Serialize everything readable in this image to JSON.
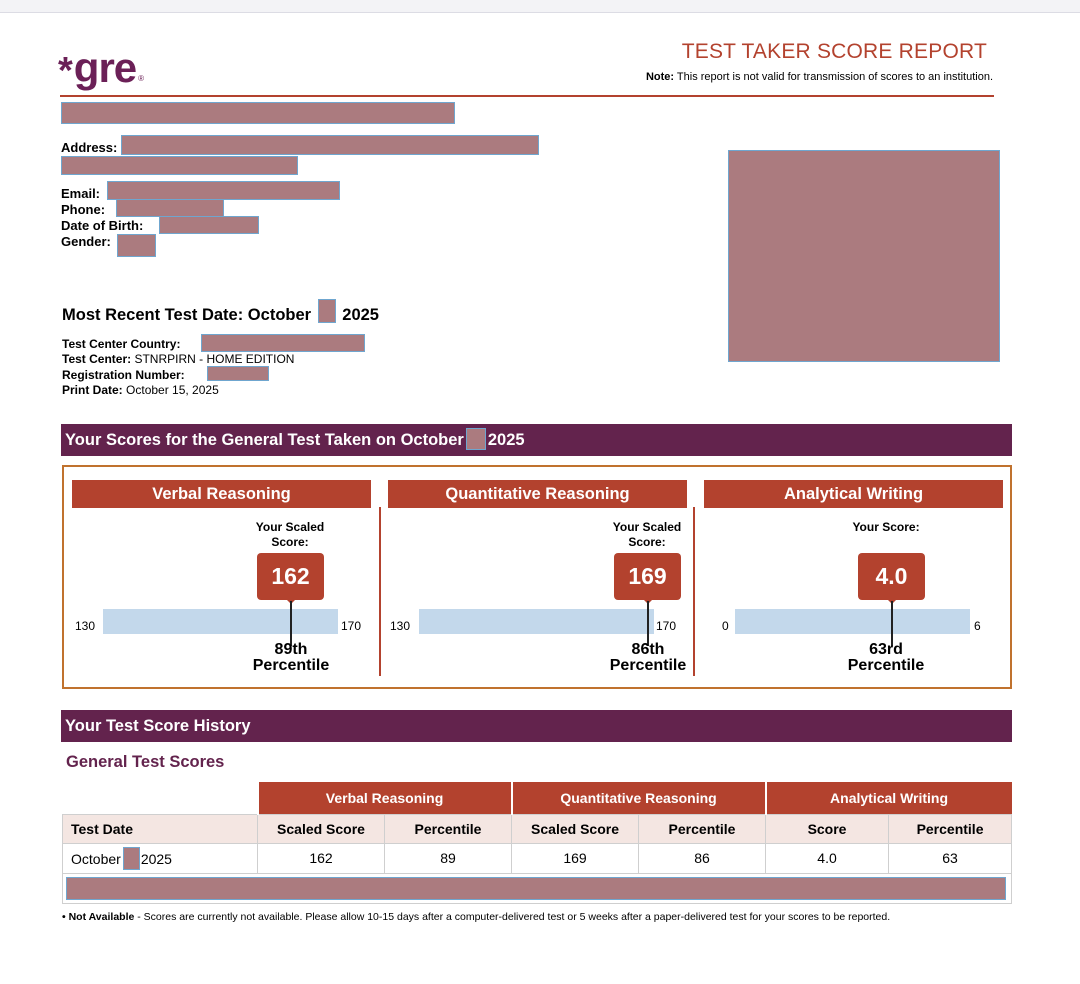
{
  "header": {
    "logo_asterisk": "*",
    "logo_word": "gre",
    "logo_reg": "®",
    "report_title": "TEST TAKER SCORE REPORT",
    "note_label": "Note:",
    "note_text": " This report is not valid for transmission of scores to an institution."
  },
  "personal": {
    "address_label": "Address:",
    "email_label": "Email:",
    "phone_label": "Phone:",
    "dob_label": "Date of Birth:",
    "gender_label": "Gender:"
  },
  "test": {
    "recent_prefix": "Most Recent Test Date: October",
    "recent_year": "2025",
    "country_label": "Test Center Country:",
    "center_label": "Test Center:",
    "center_value": " STNRPIRN - HOME EDITION",
    "registration_label": "Registration Number:",
    "print_label": "Print Date:",
    "print_value": " October 15, 2025"
  },
  "scores_section": {
    "title_prefix": "Your Scores for the General Test Taken on October",
    "title_year": "2025",
    "sections": [
      {
        "name": "Verbal Reasoning",
        "scaled_label": "Your Scaled Score:",
        "score": "162",
        "min": "130",
        "max": "170",
        "percentile_ordinal": "89th",
        "percentile_word": "Percentile",
        "min_num": 130,
        "max_num": 170,
        "score_num": 162
      },
      {
        "name": "Quantitative Reasoning",
        "scaled_label": "Your Scaled Score:",
        "score": "169",
        "min": "130",
        "max": "170",
        "percentile_ordinal": "86th",
        "percentile_word": "Percentile",
        "min_num": 130,
        "max_num": 170,
        "score_num": 169
      },
      {
        "name": "Analytical Writing",
        "scaled_label": "Your Score:",
        "score": "4.0",
        "min": "0",
        "max": "6",
        "percentile_ordinal": "63rd",
        "percentile_word": "Percentile",
        "min_num": 0,
        "max_num": 6,
        "score_num": 4.0
      }
    ]
  },
  "history": {
    "title": "Your Test Score History",
    "subtitle": "General Test Scores",
    "groups": [
      "Verbal Reasoning",
      "Quantitative Reasoning",
      "Analytical Writing"
    ],
    "columns": [
      "Test Date",
      "Scaled Score",
      "Percentile",
      "Scaled Score",
      "Percentile",
      "Score",
      "Percentile"
    ],
    "rows": [
      {
        "date_prefix": "October",
        "date_year": "2025",
        "cells": [
          "162",
          "89",
          "169",
          "86",
          "4.0",
          "63"
        ]
      }
    ]
  },
  "footnote": {
    "label": "• Not Available",
    "text": " - Scores are currently not available. Please allow 10-15 days after a computer-delivered test or 5 weeks after a paper-delivered test for your scores to be reported."
  }
}
